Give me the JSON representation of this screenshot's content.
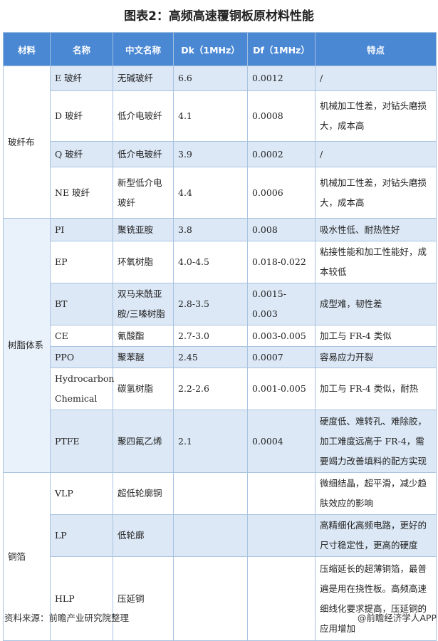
{
  "title": "图表2：高频高速覆铜板原材料性能",
  "columns": [
    "材料",
    "名称",
    "中文名称",
    "Dk（1MHz）",
    "Df（1MHz）",
    "特点"
  ],
  "groups": [
    {
      "material": "玻纤布",
      "rows": [
        {
          "name": "E 玻纤",
          "cn": "无碱玻纤",
          "dk": "6.6",
          "df": "0.0012",
          "feature": "/"
        },
        {
          "name": "D 玻纤",
          "cn": "低介电玻纤",
          "dk": "4.1",
          "df": "0.0008",
          "feature": "机械加工性差，对钻头磨损大，成本高"
        },
        {
          "name": "Q 玻纤",
          "cn": "低介电玻纤",
          "dk": "3.9",
          "df": "0.0002",
          "feature": "/"
        },
        {
          "name": "NE 玻纤",
          "cn": "新型低介电玻纤",
          "dk": "4.4",
          "df": "0.0006",
          "feature": "机械加工性差，对钻头磨损大，成本高"
        }
      ]
    },
    {
      "material": "树脂体系",
      "rows": [
        {
          "name": "PI",
          "cn": "聚铣亚胺",
          "dk": "3.8",
          "df": "0.008",
          "feature": "吸水性低、耐热性好"
        },
        {
          "name": "EP",
          "cn": "环氧树脂",
          "dk": "4.0-4.5",
          "df": "0.018-0.022",
          "feature": "粘接性能和加工性能好，成本较低"
        },
        {
          "name": "BT",
          "cn": "双马来酰亚胺/三嗪树脂",
          "dk": "2.8-3.5",
          "df": "0.0015-0.003",
          "feature": "成型难，韧性差"
        },
        {
          "name": "CE",
          "cn": "氰酸酯",
          "dk": "2.7-3.0",
          "df": "0.003-0.005",
          "feature": "加工与 FR-4 类似"
        },
        {
          "name": "PPO",
          "cn": "聚苯醚",
          "dk": "2.45",
          "df": "0.0007",
          "feature": "容易应力开裂"
        },
        {
          "name": "Hydrocarbon Chemical",
          "cn": "碳氢树脂",
          "dk": "2.2-2.6",
          "df": "0.001-0.005",
          "feature": "加工与 FR-4 类似，耐热"
        },
        {
          "name": "PTFE",
          "cn": "聚四氟乙烯",
          "dk": "2.1",
          "df": "0.0004",
          "feature": "硬度低、难转孔、难除胶，加工难度远高于 FR-4，需要竭力改善填料的配方实现"
        }
      ]
    },
    {
      "material": "铜箔",
      "rows": [
        {
          "name": "VLP",
          "cn": "超低轮廓铜",
          "dk": "",
          "df": "",
          "feature": "微细结晶，超平滑，减少趋肤效应的影响"
        },
        {
          "name": "LP",
          "cn": "低轮廓",
          "dk": "",
          "df": "",
          "feature": "高精细化高频电路，更好的尺寸稳定性，更高的硬度"
        },
        {
          "name": "HLP",
          "cn": "压延铜",
          "dk": "",
          "df": "",
          "feature": "压缩延长的超薄铜箔，最普遍是用在挠性板。高频高速细线化要求提高，压延铜的应用增加"
        }
      ]
    }
  ],
  "footer": {
    "source": "资料来源：前瞻产业研究院整理",
    "credit": "@前瞻经济学人APP"
  },
  "colors": {
    "header": "#4a88d4",
    "stripe": "#dce8f6",
    "border": "#a9c3e0"
  }
}
